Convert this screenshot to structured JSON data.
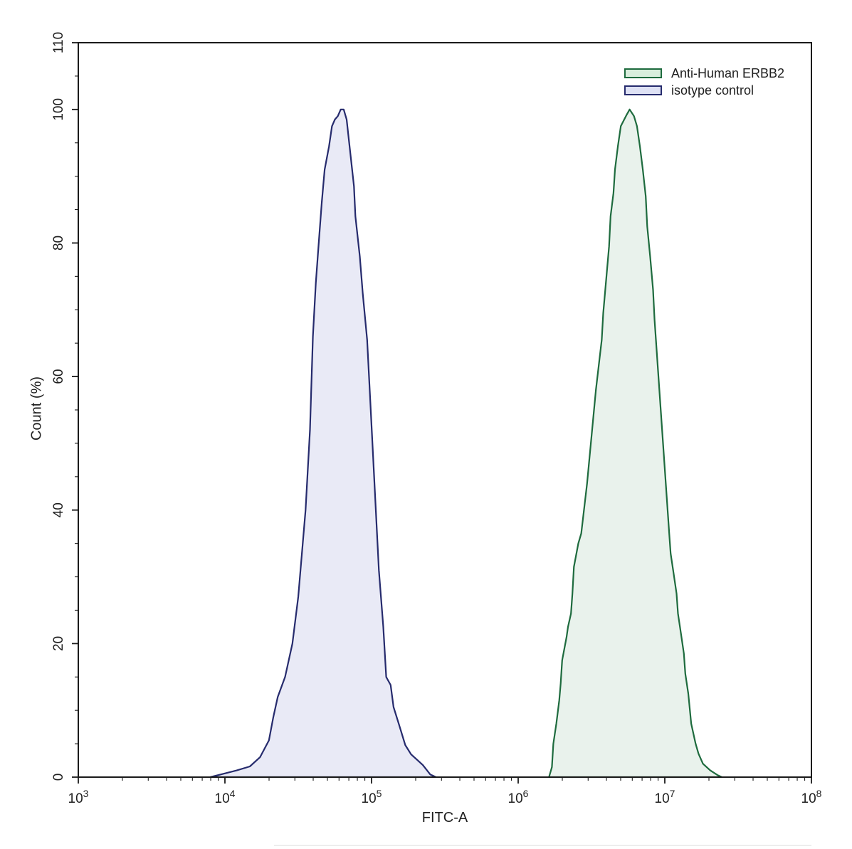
{
  "figure": {
    "background": "#ffffff",
    "xlabel": "FITC-A",
    "ylabel": "Count  (%)"
  },
  "legend": {
    "position": "top-right",
    "items": [
      {
        "label": "Anti-Human ERBB2",
        "swatch_fill": "#d9eedd",
        "swatch_border": "#1e6b3e"
      },
      {
        "label": "isotype control",
        "swatch_fill": "#dee1f4",
        "swatch_border": "#262b6d"
      }
    ]
  },
  "axes": {
    "x": {
      "scale": "log",
      "min_exp": 3,
      "max_exp": 8,
      "tick_base": "10",
      "tick_exps": [
        "3",
        "4",
        "5",
        "6",
        "7",
        "8"
      ],
      "line_color": "#1a1a1a"
    },
    "y": {
      "min": 0,
      "max": 110,
      "major_ticks": [
        0,
        20,
        40,
        60,
        80,
        100,
        110
      ],
      "tick_labels": [
        "0",
        "20",
        "40",
        "60",
        "80",
        "100",
        "110"
      ],
      "minor_step": 5,
      "line_color": "#1a1a1a"
    }
  },
  "chart_data": {
    "type": "area",
    "subtype": "flow-cytometry-histogram",
    "title": "",
    "xlabel": "FITC-A",
    "ylabel": "Count  (%)",
    "x_scale": "log10",
    "x_range": [
      1000,
      100000000
    ],
    "ylim": [
      0,
      110
    ],
    "grid": false,
    "legend_position": "top-right",
    "series": [
      {
        "name": "isotype control",
        "stroke": "#262b6d",
        "fill": "#e9eaf6",
        "peak_log10x": 4.8,
        "peak_x_approx": 63000,
        "peak_y_percent": 100,
        "points_log10x_percent": [
          [
            3.9,
            0
          ],
          [
            3.99,
            0.5
          ],
          [
            4.08,
            1.0
          ],
          [
            4.17,
            1.6
          ],
          [
            4.24,
            3
          ],
          [
            4.3,
            5.5
          ],
          [
            4.33,
            9
          ],
          [
            4.36,
            12
          ],
          [
            4.41,
            15
          ],
          [
            4.46,
            20
          ],
          [
            4.5,
            27
          ],
          [
            4.55,
            40
          ],
          [
            4.58,
            52
          ],
          [
            4.6,
            66
          ],
          [
            4.62,
            74
          ],
          [
            4.64,
            80
          ],
          [
            4.66,
            86
          ],
          [
            4.68,
            91
          ],
          [
            4.71,
            94.5
          ],
          [
            4.73,
            97.5
          ],
          [
            4.75,
            98.5
          ],
          [
            4.77,
            99
          ],
          [
            4.79,
            100
          ],
          [
            4.81,
            100
          ],
          [
            4.83,
            98.5
          ],
          [
            4.85,
            94.5
          ],
          [
            4.88,
            88.5
          ],
          [
            4.89,
            84
          ],
          [
            4.92,
            78
          ],
          [
            4.94,
            72.5
          ],
          [
            4.97,
            65.5
          ],
          [
            4.99,
            57
          ],
          [
            5.02,
            44
          ],
          [
            5.05,
            31
          ],
          [
            5.08,
            22.5
          ],
          [
            5.1,
            15
          ],
          [
            5.13,
            13.8
          ],
          [
            5.15,
            10.5
          ],
          [
            5.19,
            7.7
          ],
          [
            5.23,
            4.8
          ],
          [
            5.27,
            3.4
          ],
          [
            5.31,
            2.6
          ],
          [
            5.35,
            1.8
          ],
          [
            5.4,
            0.4
          ],
          [
            5.44,
            0
          ]
        ]
      },
      {
        "name": "Anti-Human ERBB2",
        "stroke": "#1e6b3e",
        "fill": "#e9f2ec",
        "peak_log10x": 6.76,
        "peak_x_approx": 5800000,
        "peak_y_percent": 100,
        "points_log10x_percent": [
          [
            6.21,
            0
          ],
          [
            6.23,
            1.5
          ],
          [
            6.24,
            5
          ],
          [
            6.26,
            8
          ],
          [
            6.28,
            11.5
          ],
          [
            6.29,
            14
          ],
          [
            6.3,
            17.5
          ],
          [
            6.33,
            21
          ],
          [
            6.34,
            22.5
          ],
          [
            6.36,
            24.5
          ],
          [
            6.37,
            27.5
          ],
          [
            6.38,
            31.5
          ],
          [
            6.41,
            35
          ],
          [
            6.43,
            36.5
          ],
          [
            6.47,
            44
          ],
          [
            6.5,
            51
          ],
          [
            6.53,
            58
          ],
          [
            6.57,
            65.5
          ],
          [
            6.58,
            69.5
          ],
          [
            6.6,
            74.5
          ],
          [
            6.62,
            79.5
          ],
          [
            6.63,
            84
          ],
          [
            6.65,
            87.5
          ],
          [
            6.66,
            91
          ],
          [
            6.68,
            94.5
          ],
          [
            6.7,
            97.5
          ],
          [
            6.74,
            99.2
          ],
          [
            6.76,
            100
          ],
          [
            6.79,
            99
          ],
          [
            6.81,
            97.5
          ],
          [
            6.83,
            94.5
          ],
          [
            6.85,
            91
          ],
          [
            6.87,
            87
          ],
          [
            6.88,
            82.5
          ],
          [
            6.9,
            78
          ],
          [
            6.92,
            73
          ],
          [
            6.93,
            68.5
          ],
          [
            6.98,
            52.5
          ],
          [
            7.03,
            36.5
          ],
          [
            7.04,
            33.5
          ],
          [
            7.06,
            30.5
          ],
          [
            7.08,
            27.5
          ],
          [
            7.09,
            24.5
          ],
          [
            7.11,
            21.5
          ],
          [
            7.13,
            18.5
          ],
          [
            7.14,
            15.5
          ],
          [
            7.16,
            12.5
          ],
          [
            7.18,
            8
          ],
          [
            7.21,
            5
          ],
          [
            7.23,
            3.5
          ],
          [
            7.26,
            2
          ],
          [
            7.31,
            1
          ],
          [
            7.36,
            0.3
          ],
          [
            7.39,
            0
          ]
        ]
      }
    ]
  }
}
